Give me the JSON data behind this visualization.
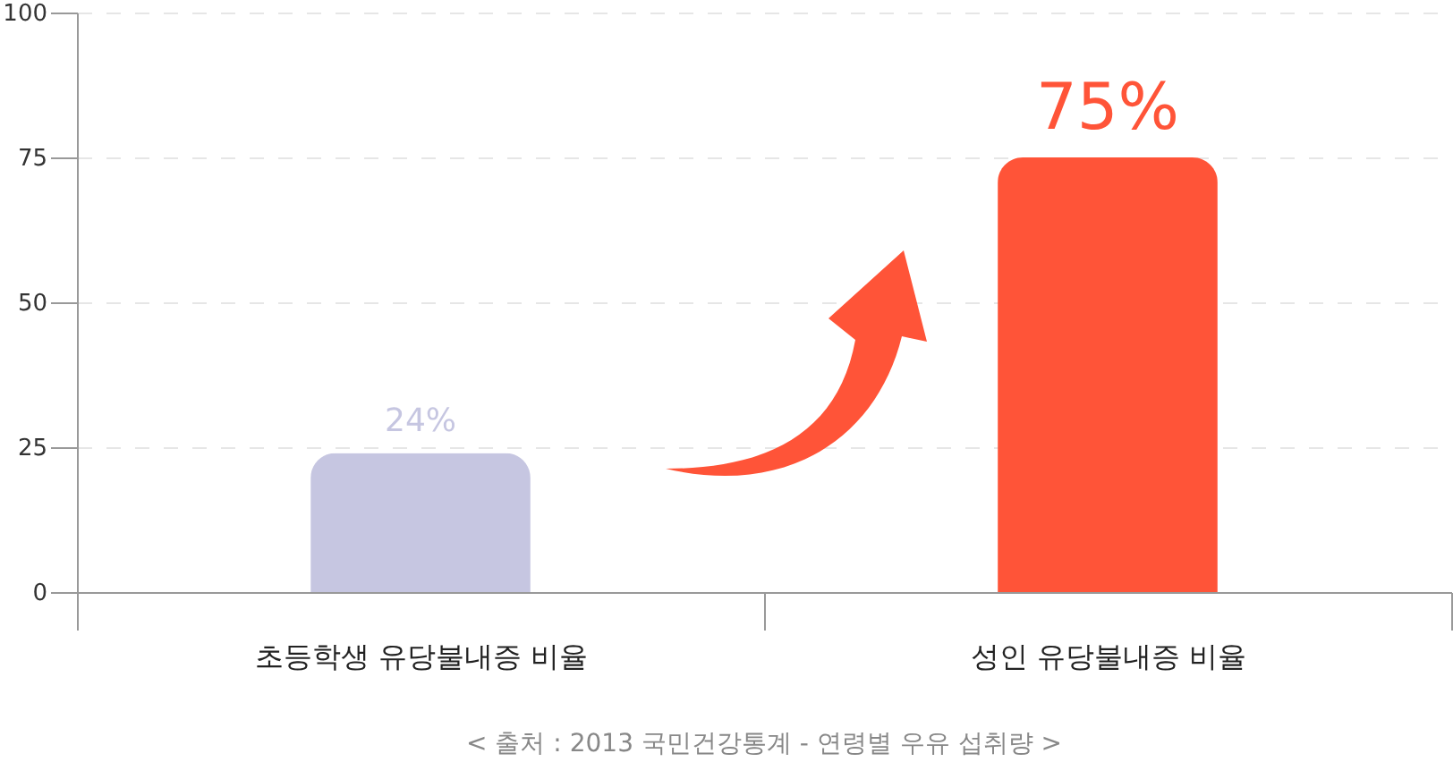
{
  "chart_data": {
    "type": "bar",
    "categories": [
      "초등학생 유당불내증 비율",
      "성인 유당불내증 비율"
    ],
    "values": [
      24,
      75
    ],
    "colors": [
      "#c6c6e1",
      "#ff5438"
    ],
    "value_labels": [
      "24%",
      "75%"
    ],
    "ylim": [
      0,
      100
    ],
    "yticks": [
      0,
      25,
      50,
      75,
      100
    ],
    "grid": "y",
    "annotations": [
      "< 출처 : 2013 국민건강통계 - 연령별 우유 섭취량 >"
    ]
  }
}
